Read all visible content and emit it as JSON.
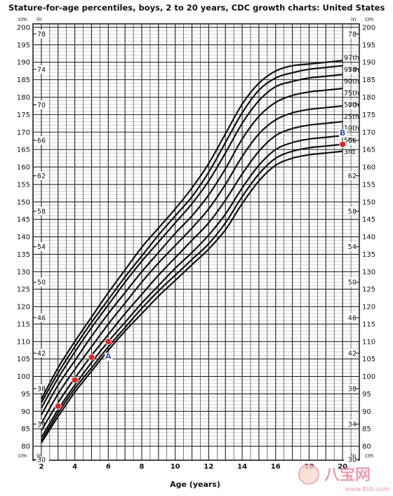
{
  "chart_data": {
    "type": "line",
    "title": "Stature-for-age percentiles, boys, 2 to 20 years, CDC growth charts: United States",
    "xlabel": "Age (years)",
    "y_unit_left": "cm",
    "y_unit_right": "in",
    "x_ticks": [
      2,
      4,
      6,
      8,
      10,
      12,
      14,
      16,
      18,
      20
    ],
    "y_ticks_cm": [
      80,
      85,
      90,
      95,
      100,
      105,
      110,
      115,
      120,
      125,
      130,
      135,
      140,
      145,
      150,
      155,
      160,
      165,
      170,
      175,
      180,
      185,
      190,
      195,
      200
    ],
    "y_ticks_in": [
      30,
      34,
      38,
      42,
      46,
      50,
      54,
      58,
      62,
      66,
      70,
      74,
      78
    ],
    "xlim": [
      1.5,
      21
    ],
    "ylim": [
      76,
      201
    ],
    "grid": true,
    "x": [
      2,
      3,
      4,
      5,
      6,
      7,
      8,
      9,
      10,
      11,
      12,
      13,
      14,
      15,
      16,
      17,
      18,
      19,
      20
    ],
    "series": [
      {
        "name": "97th",
        "values": [
          93.5,
          102.5,
          110,
          117,
          124,
          130.5,
          137,
          142.5,
          148,
          154,
          161,
          169.5,
          178,
          184,
          187.5,
          189,
          189.5,
          190,
          190.5
        ]
      },
      {
        "name": "95th",
        "values": [
          92.5,
          101,
          108.5,
          115.5,
          122,
          128.5,
          134.5,
          140.5,
          146,
          151.5,
          158.5,
          167,
          175.5,
          182,
          185.5,
          187,
          188,
          188.5,
          189
        ]
      },
      {
        "name": "90th",
        "values": [
          91,
          99.5,
          107,
          114,
          120.5,
          127,
          133,
          138.5,
          144,
          149.5,
          156,
          164,
          172.5,
          179,
          183,
          184.5,
          185.5,
          186,
          186.5
        ]
      },
      {
        "name": "75th",
        "values": [
          89,
          97.5,
          104.5,
          111.5,
          118,
          124,
          130,
          135.5,
          141,
          146,
          152,
          159.5,
          168,
          174.5,
          178.5,
          180.5,
          181.5,
          182,
          182.5
        ]
      },
      {
        "name": "50th",
        "values": [
          86.5,
          95,
          102,
          108.5,
          115,
          121,
          127,
          132.5,
          137.5,
          142.5,
          148,
          155,
          163,
          169.5,
          173.5,
          175.5,
          176.5,
          177,
          177.5
        ]
      },
      {
        "name": "25th",
        "values": [
          84.5,
          92.5,
          99.5,
          106,
          112,
          118,
          123.5,
          129,
          134,
          139,
          144,
          150.5,
          158,
          164.5,
          169,
          171,
          172,
          172.5,
          173
        ]
      },
      {
        "name": "10th",
        "values": [
          82.5,
          90.5,
          97.5,
          104,
          110,
          115.5,
          121,
          126,
          131,
          135.5,
          140.5,
          146.5,
          154,
          160.5,
          165,
          167,
          168,
          168.5,
          169
        ]
      },
      {
        "name": "5th",
        "values": [
          81.5,
          89.5,
          96.5,
          102.5,
          108.5,
          114,
          119.5,
          124.5,
          129,
          133.5,
          138,
          144,
          151.5,
          158,
          162.5,
          164.5,
          165.5,
          166,
          166.5
        ]
      },
      {
        "name": "3rd",
        "values": [
          81,
          88.5,
          95.5,
          101.5,
          107.5,
          113,
          118,
          123,
          127.5,
          132,
          136.5,
          142,
          149.5,
          156,
          160.5,
          162.5,
          163.5,
          164,
          164.5
        ]
      }
    ],
    "annotations": [
      {
        "type": "point",
        "x": 3,
        "y": 91.5
      },
      {
        "type": "point",
        "x": 4,
        "y": 99
      },
      {
        "type": "point",
        "x": 5,
        "y": 105.5
      },
      {
        "type": "point",
        "x": 6,
        "y": 110
      },
      {
        "type": "point",
        "x": 20,
        "y": 166.5
      },
      {
        "type": "label",
        "text": "A",
        "x": 6,
        "y": 105
      },
      {
        "type": "label",
        "text": "B",
        "x": 20,
        "y": 169
      }
    ],
    "point_color": "#d9262c",
    "label_color": "#3b53b5"
  },
  "watermark": {
    "brand": "八宝网",
    "url": "www.8bb.com"
  }
}
